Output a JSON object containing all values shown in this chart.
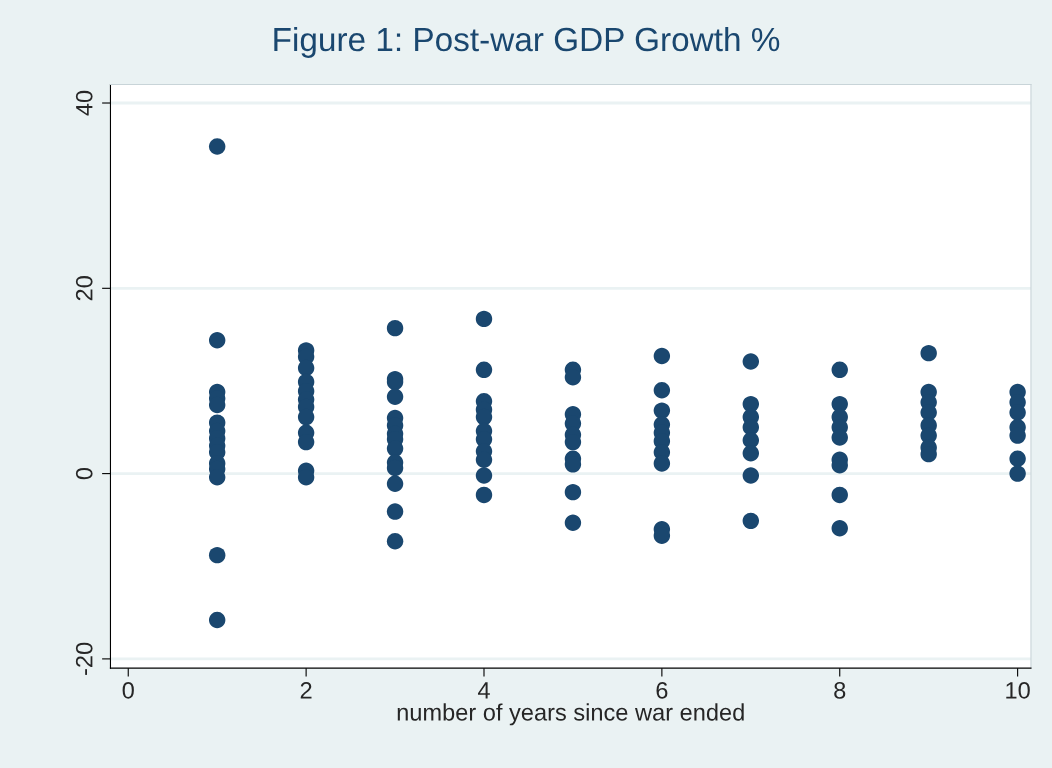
{
  "chart_data": {
    "type": "scatter",
    "title": "Figure 1: Post-war GDP Growth %",
    "xlabel": "number of years since war ended",
    "x": [
      1,
      1,
      1,
      1,
      1,
      1,
      1,
      1,
      1,
      1,
      1,
      1,
      1,
      1,
      1,
      2,
      2,
      2,
      2,
      2,
      2,
      2,
      2,
      2,
      2,
      2,
      2,
      3,
      3,
      3,
      3,
      3,
      3,
      3,
      3,
      3,
      3,
      3,
      3,
      3,
      3,
      4,
      4,
      4,
      4,
      4,
      4,
      4,
      4,
      4,
      4,
      4,
      5,
      5,
      5,
      5,
      5,
      5,
      5,
      5,
      5,
      5,
      6,
      6,
      6,
      6,
      6,
      6,
      6,
      6,
      6,
      6,
      7,
      7,
      7,
      7,
      7,
      7,
      7,
      7,
      8,
      8,
      8,
      8,
      8,
      8,
      8,
      8,
      8,
      9,
      9,
      9,
      9,
      9,
      9,
      9,
      9,
      10,
      10,
      10,
      10,
      10,
      10,
      10
    ],
    "series": [
      {
        "color": "#1a476f",
        "values": [
          35.3,
          14.4,
          8.8,
          8.1,
          7.4,
          5.5,
          4.6,
          3.8,
          3.0,
          2.3,
          1.1,
          0.5,
          -0.4,
          -8.8,
          -15.8,
          13.3,
          12.6,
          11.4,
          9.9,
          8.9,
          8.0,
          7.2,
          6.1,
          4.4,
          3.4,
          0.3,
          -0.4,
          15.7,
          10.2,
          9.9,
          8.3,
          6.0,
          5.2,
          4.3,
          3.7,
          2.7,
          1.2,
          0.6,
          -1.1,
          -4.1,
          -7.3,
          16.7,
          11.2,
          7.8,
          6.9,
          6.1,
          4.6,
          3.7,
          2.4,
          1.5,
          -0.2,
          -2.3,
          11.2,
          10.4,
          6.4,
          5.4,
          4.2,
          3.4,
          1.6,
          1.0,
          -2.0,
          -5.3,
          12.7,
          9.0,
          6.8,
          5.3,
          4.4,
          3.5,
          2.3,
          1.1,
          -6.0,
          -6.7,
          12.1,
          7.5,
          6.1,
          5.0,
          3.6,
          2.2,
          -0.2,
          -5.1,
          11.2,
          7.5,
          6.1,
          5.0,
          3.9,
          1.5,
          0.9,
          -2.3,
          -5.9,
          13.0,
          8.8,
          7.7,
          6.6,
          5.2,
          4.1,
          2.8,
          2.1,
          8.8,
          7.7,
          6.6,
          5.0,
          4.1,
          1.6,
          0.0
        ]
      }
    ],
    "xlim": [
      -0.2,
      10.15
    ],
    "ylim": [
      -21,
      42
    ],
    "xticks": [
      0,
      2,
      4,
      6,
      8,
      10
    ],
    "yticks": [
      -20,
      0,
      20,
      40
    ],
    "grid": "y",
    "marker": "circle"
  }
}
